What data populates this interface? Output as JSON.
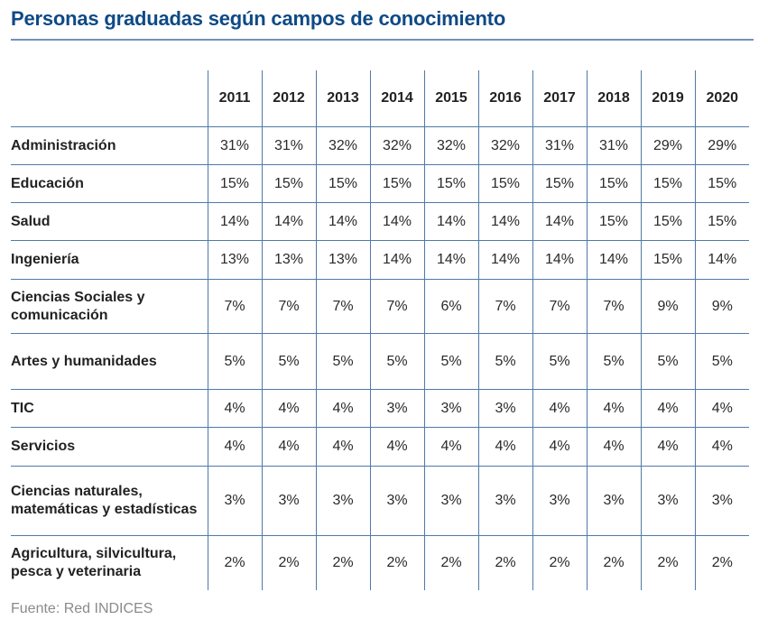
{
  "title": "Personas graduadas según campos de conocimiento",
  "table": {
    "years": [
      "2011",
      "2012",
      "2013",
      "2014",
      "2015",
      "2016",
      "2017",
      "2018",
      "2019",
      "2020"
    ],
    "rows": [
      {
        "label": "Administración",
        "values": [
          "31%",
          "31%",
          "32%",
          "32%",
          "32%",
          "32%",
          "31%",
          "31%",
          "29%",
          "29%"
        ]
      },
      {
        "label": "Educación",
        "values": [
          "15%",
          "15%",
          "15%",
          "15%",
          "15%",
          "15%",
          "15%",
          "15%",
          "15%",
          "15%"
        ]
      },
      {
        "label": "Salud",
        "values": [
          "14%",
          "14%",
          "14%",
          "14%",
          "14%",
          "14%",
          "14%",
          "15%",
          "15%",
          "15%"
        ]
      },
      {
        "label": "Ingeniería",
        "values": [
          "13%",
          "13%",
          "13%",
          "14%",
          "14%",
          "14%",
          "14%",
          "14%",
          "15%",
          "14%"
        ]
      },
      {
        "label": "Ciencias Sociales y comunicación",
        "values": [
          "7%",
          "7%",
          "7%",
          "7%",
          "6%",
          "7%",
          "7%",
          "7%",
          "9%",
          "9%"
        ]
      },
      {
        "label": "Artes y humanidades",
        "values": [
          "5%",
          "5%",
          "5%",
          "5%",
          "5%",
          "5%",
          "5%",
          "5%",
          "5%",
          "5%"
        ]
      },
      {
        "label": "TIC",
        "values": [
          "4%",
          "4%",
          "4%",
          "3%",
          "3%",
          "3%",
          "4%",
          "4%",
          "4%",
          "4%"
        ]
      },
      {
        "label": "Servicios",
        "values": [
          "4%",
          "4%",
          "4%",
          "4%",
          "4%",
          "4%",
          "4%",
          "4%",
          "4%",
          "4%"
        ]
      },
      {
        "label": "Ciencias naturales, matemáticas y estadísticas",
        "values": [
          "3%",
          "3%",
          "3%",
          "3%",
          "3%",
          "3%",
          "3%",
          "3%",
          "3%",
          "3%"
        ]
      },
      {
        "label": "Agricultura, silvicultura, pesca y veterinaria",
        "values": [
          "2%",
          "2%",
          "2%",
          "2%",
          "2%",
          "2%",
          "2%",
          "2%",
          "2%",
          "2%"
        ]
      }
    ]
  },
  "footer": "Fuente: Red INDICES"
}
